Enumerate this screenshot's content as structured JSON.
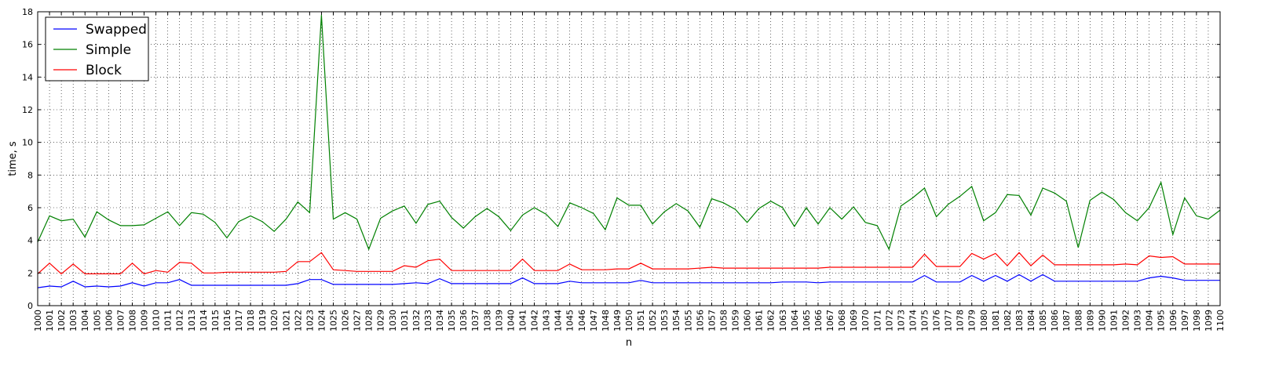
{
  "chart_data": {
    "type": "line",
    "xlabel": "n",
    "ylabel": "time, s",
    "xlim": [
      1000,
      1100
    ],
    "ylim": [
      0,
      18
    ],
    "yticks": [
      0,
      2,
      4,
      6,
      8,
      10,
      12,
      14,
      16,
      18
    ],
    "grid": true,
    "legend_position": "top-left",
    "x": [
      1000,
      1001,
      1002,
      1003,
      1004,
      1005,
      1006,
      1007,
      1008,
      1009,
      1010,
      1011,
      1012,
      1013,
      1014,
      1015,
      1016,
      1017,
      1018,
      1019,
      1020,
      1021,
      1022,
      1023,
      1024,
      1025,
      1026,
      1027,
      1028,
      1029,
      1030,
      1031,
      1032,
      1033,
      1034,
      1035,
      1036,
      1037,
      1038,
      1039,
      1040,
      1041,
      1042,
      1043,
      1044,
      1045,
      1046,
      1047,
      1048,
      1049,
      1050,
      1051,
      1052,
      1053,
      1054,
      1055,
      1056,
      1057,
      1058,
      1059,
      1060,
      1061,
      1062,
      1063,
      1064,
      1065,
      1066,
      1067,
      1068,
      1069,
      1070,
      1071,
      1072,
      1073,
      1074,
      1075,
      1076,
      1077,
      1078,
      1079,
      1080,
      1081,
      1082,
      1083,
      1084,
      1085,
      1086,
      1087,
      1088,
      1089,
      1090,
      1091,
      1092,
      1093,
      1094,
      1095,
      1096,
      1097,
      1098,
      1099,
      1100
    ],
    "series": [
      {
        "name": "Swapped",
        "color": "#0000ff",
        "values": [
          1.1,
          1.2,
          1.15,
          1.5,
          1.15,
          1.2,
          1.15,
          1.2,
          1.4,
          1.2,
          1.4,
          1.4,
          1.6,
          1.25,
          1.25,
          1.25,
          1.25,
          1.25,
          1.25,
          1.25,
          1.25,
          1.25,
          1.35,
          1.6,
          1.6,
          1.3,
          1.3,
          1.3,
          1.3,
          1.3,
          1.3,
          1.35,
          1.4,
          1.35,
          1.65,
          1.35,
          1.35,
          1.35,
          1.35,
          1.35,
          1.35,
          1.7,
          1.35,
          1.35,
          1.35,
          1.5,
          1.4,
          1.4,
          1.4,
          1.4,
          1.4,
          1.55,
          1.4,
          1.4,
          1.4,
          1.4,
          1.4,
          1.4,
          1.4,
          1.4,
          1.4,
          1.4,
          1.4,
          1.45,
          1.45,
          1.45,
          1.4,
          1.45,
          1.45,
          1.45,
          1.45,
          1.45,
          1.45,
          1.45,
          1.45,
          1.85,
          1.45,
          1.45,
          1.45,
          1.85,
          1.5,
          1.85,
          1.5,
          1.9,
          1.5,
          1.9,
          1.5,
          1.5,
          1.5,
          1.5,
          1.5,
          1.5,
          1.5,
          1.5,
          1.7,
          1.8,
          1.7,
          1.55,
          1.55,
          1.55,
          1.55
        ]
      },
      {
        "name": "Simple",
        "color": "#008000",
        "values": [
          3.9,
          5.5,
          5.2,
          5.3,
          4.2,
          5.75,
          5.25,
          4.9,
          4.9,
          4.95,
          5.35,
          5.75,
          4.9,
          5.7,
          5.6,
          5.1,
          4.15,
          5.15,
          5.5,
          5.15,
          4.55,
          5.3,
          6.35,
          5.7,
          17.8,
          5.3,
          5.7,
          5.3,
          3.45,
          5.35,
          5.8,
          6.1,
          5.05,
          6.2,
          6.4,
          5.4,
          4.75,
          5.45,
          5.95,
          5.45,
          4.6,
          5.55,
          6.0,
          5.6,
          4.85,
          6.3,
          6.0,
          5.65,
          4.65,
          6.6,
          6.15,
          6.15,
          5.0,
          5.75,
          6.25,
          5.8,
          4.8,
          6.55,
          6.3,
          5.9,
          5.1,
          5.95,
          6.4,
          6.0,
          4.85,
          6.0,
          5.0,
          6.0,
          5.3,
          6.05,
          5.1,
          4.9,
          3.45,
          6.1,
          6.6,
          7.2,
          5.45,
          6.2,
          6.7,
          7.3,
          5.2,
          5.7,
          6.8,
          6.75,
          5.55,
          7.2,
          6.9,
          6.4,
          3.55,
          6.45,
          6.95,
          6.5,
          5.7,
          5.2,
          6.0,
          7.55,
          4.35,
          6.6,
          5.5,
          5.3,
          5.85
        ]
      },
      {
        "name": "Block",
        "color": "#ff0000",
        "values": [
          1.95,
          2.6,
          1.95,
          2.55,
          1.95,
          1.95,
          1.95,
          1.95,
          2.6,
          1.95,
          2.15,
          2.05,
          2.65,
          2.6,
          2.0,
          2.0,
          2.05,
          2.05,
          2.05,
          2.05,
          2.05,
          2.1,
          2.7,
          2.7,
          3.25,
          2.2,
          2.15,
          2.1,
          2.1,
          2.1,
          2.1,
          2.45,
          2.35,
          2.75,
          2.85,
          2.15,
          2.15,
          2.15,
          2.15,
          2.15,
          2.15,
          2.85,
          2.15,
          2.15,
          2.15,
          2.55,
          2.2,
          2.2,
          2.2,
          2.25,
          2.25,
          2.6,
          2.25,
          2.25,
          2.25,
          2.25,
          2.3,
          2.35,
          2.3,
          2.3,
          2.3,
          2.3,
          2.3,
          2.3,
          2.3,
          2.3,
          2.3,
          2.35,
          2.35,
          2.35,
          2.35,
          2.35,
          2.35,
          2.35,
          2.35,
          3.15,
          2.4,
          2.4,
          2.4,
          3.2,
          2.85,
          3.2,
          2.45,
          3.25,
          2.45,
          3.1,
          2.5,
          2.5,
          2.5,
          2.5,
          2.5,
          2.5,
          2.55,
          2.5,
          3.05,
          2.95,
          3.0,
          2.55,
          2.55,
          2.55,
          2.55
        ]
      }
    ]
  }
}
